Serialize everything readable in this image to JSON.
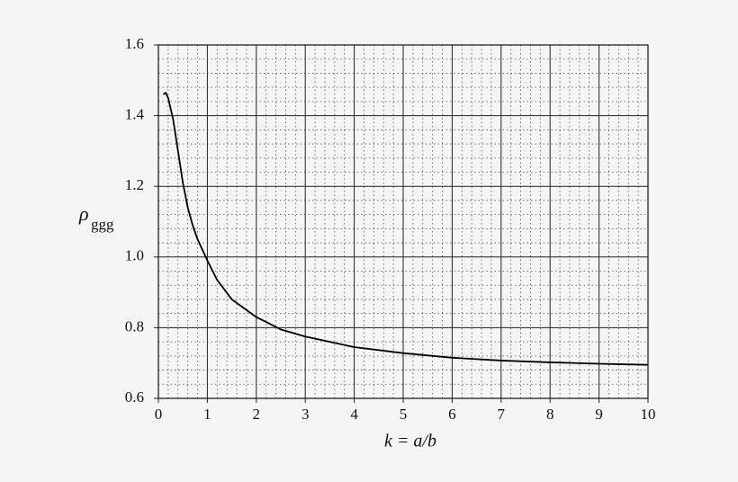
{
  "chart_data": {
    "type": "line",
    "xlabel": "k = a/b",
    "ylabel": {
      "symbol": "ρ",
      "subscript": "ggg"
    },
    "x": [
      0.1,
      0.15,
      0.2,
      0.3,
      0.4,
      0.5,
      0.6,
      0.7,
      0.8,
      1.0,
      1.2,
      1.5,
      2.0,
      2.5,
      3.0,
      3.5,
      4.0,
      5.0,
      6.0,
      7.0,
      8.0,
      9.0,
      10.0
    ],
    "values": [
      1.46,
      1.465,
      1.45,
      1.39,
      1.3,
      1.21,
      1.14,
      1.09,
      1.05,
      0.99,
      0.935,
      0.88,
      0.83,
      0.795,
      0.775,
      0.76,
      0.745,
      0.728,
      0.715,
      0.707,
      0.702,
      0.698,
      0.695
    ],
    "color": "#000000",
    "xlim": [
      0,
      10
    ],
    "xticks": [
      0,
      1,
      2,
      3,
      4,
      5,
      6,
      7,
      8,
      9,
      10
    ],
    "ylim": [
      0.6,
      1.6
    ],
    "yticks": [
      0.6,
      0.8,
      {
        "value": 1,
        "label": "1.0"
      },
      1.2,
      1.4,
      1.6
    ],
    "grid": true,
    "minor_grid": true
  }
}
